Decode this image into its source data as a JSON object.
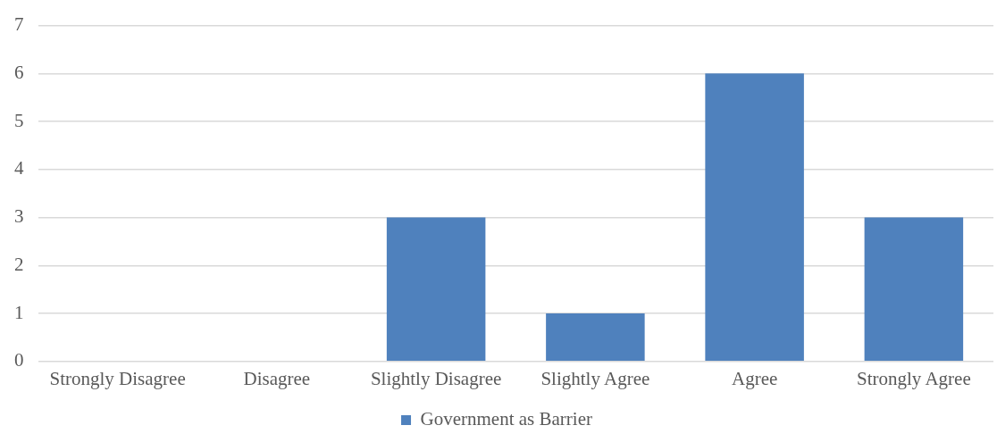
{
  "chart_data": {
    "type": "bar",
    "categories": [
      "Strongly Disagree",
      "Disagree",
      "Slightly Disagree",
      "Slightly Agree",
      "Agree",
      "Strongly Agree"
    ],
    "series": [
      {
        "name": "Government as Barrier",
        "color": "#4f81bd",
        "values": [
          0,
          0,
          3,
          1,
          6,
          3
        ]
      }
    ],
    "ylim": [
      0,
      7
    ],
    "yticks": [
      0,
      1,
      2,
      3,
      4,
      5,
      6,
      7
    ],
    "grid": "y",
    "legend": "bottom"
  }
}
